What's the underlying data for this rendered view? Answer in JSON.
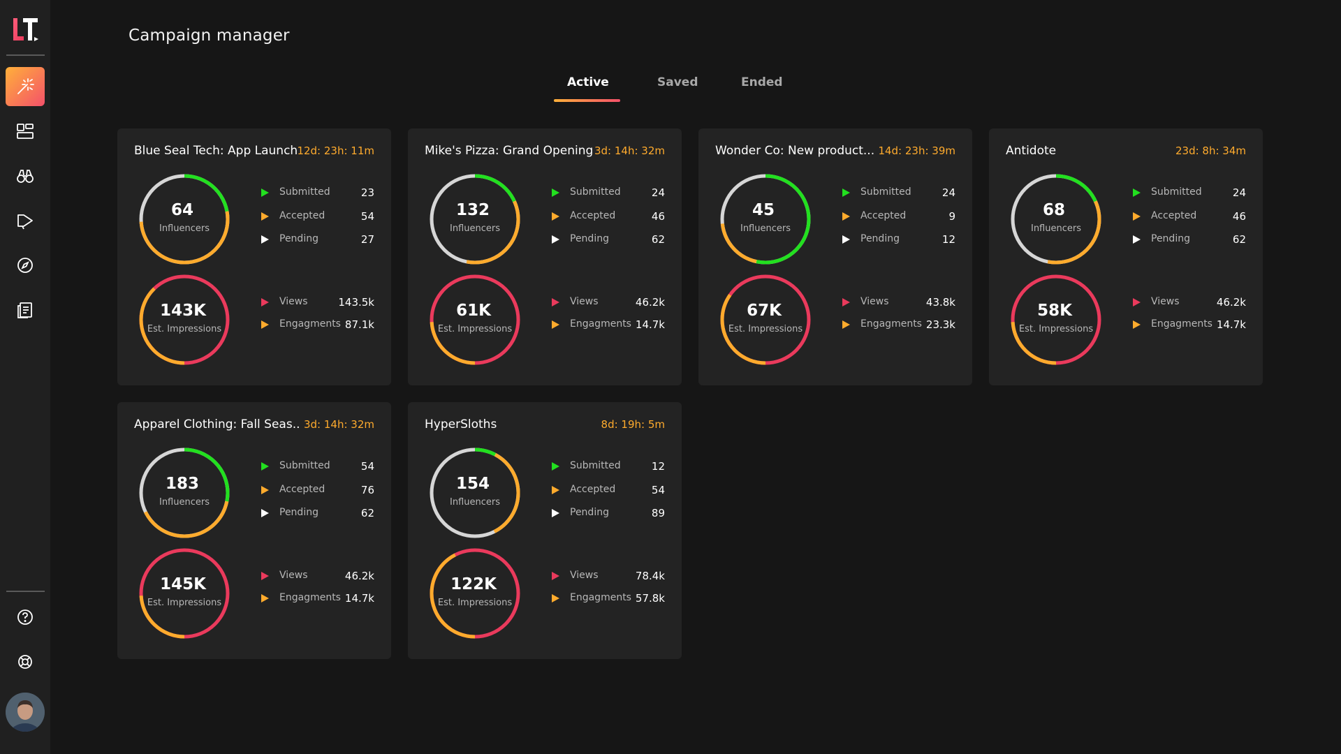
{
  "app": {
    "page_title": "Campaign manager",
    "logo_text": "LT"
  },
  "colors": {
    "background": "#161616",
    "sidebar": "#202020",
    "card": "#232323",
    "green": "#22e01f",
    "orange": "#ffab2d",
    "red": "#ea3a5c",
    "gray": "#d6d6d6",
    "accent_gradient_start": "#ffb03a",
    "accent_gradient_end": "#f4516a"
  },
  "sidebar": {
    "items": [
      {
        "icon": "magic-wand-icon",
        "active": true
      },
      {
        "icon": "dashboard-icon",
        "active": false
      },
      {
        "icon": "binoculars-icon",
        "active": false
      },
      {
        "icon": "megaphone-icon",
        "active": false
      },
      {
        "icon": "compass-icon",
        "active": false
      },
      {
        "icon": "reports-icon",
        "active": false
      }
    ],
    "bottom": [
      {
        "icon": "help-icon"
      },
      {
        "icon": "support-icon"
      }
    ]
  },
  "tabs": [
    {
      "label": "Active",
      "active": true
    },
    {
      "label": "Saved",
      "active": false
    },
    {
      "label": "Ended",
      "active": false
    }
  ],
  "labels": {
    "influencers": "Influencers",
    "impressions": "Est. Impressions",
    "submitted": "Submitted",
    "accepted": "Accepted",
    "pending": "Pending",
    "views": "Views",
    "engagements": "Engagments"
  },
  "campaigns": [
    {
      "title": "Blue Seal Tech: App Launch",
      "timer": "12d: 23h: 11m",
      "influencers": "64",
      "submitted": "23",
      "accepted": "54",
      "pending": "27",
      "impressions": "143K",
      "views": "143.5k",
      "engagements": "87.1k"
    },
    {
      "title": "Mike's Pizza: Grand Opening",
      "timer": "3d: 14h: 32m",
      "influencers": "132",
      "submitted": "24",
      "accepted": "46",
      "pending": "62",
      "impressions": "61K",
      "views": "46.2k",
      "engagements": "14.7k"
    },
    {
      "title": "Wonder Co: New product...",
      "timer": "14d: 23h: 39m",
      "influencers": "45",
      "submitted": "24",
      "accepted": "9",
      "pending": "12",
      "impressions": "67K",
      "views": "43.8k",
      "engagements": "23.3k"
    },
    {
      "title": "Antidote",
      "timer": "23d: 8h: 34m",
      "influencers": "68",
      "submitted": "24",
      "accepted": "46",
      "pending": "62",
      "impressions": "58K",
      "views": "46.2k",
      "engagements": "14.7k"
    },
    {
      "title": "Apparel Clothing: Fall Seas..",
      "timer": "3d: 14h: 32m",
      "influencers": "183",
      "submitted": "54",
      "accepted": "76",
      "pending": "62",
      "impressions": "145K",
      "views": "46.2k",
      "engagements": "14.7k"
    },
    {
      "title": "HyperSloths",
      "timer": "8d: 19h: 5m",
      "influencers": "154",
      "submitted": "12",
      "accepted": "54",
      "pending": "89",
      "impressions": "122K",
      "views": "78.4k",
      "engagements": "57.8k"
    }
  ]
}
